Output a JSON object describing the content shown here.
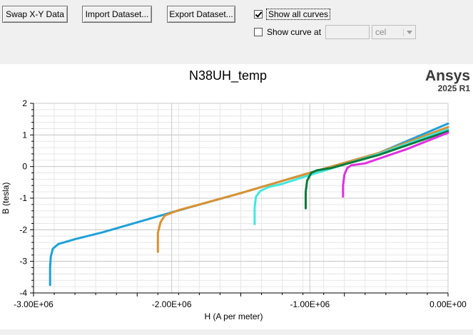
{
  "toolbar": {
    "swap_label": "Swap X-Y Data",
    "import_label": "Import Dataset...",
    "export_label": "Export Dataset...",
    "show_all_curves": {
      "label": "Show all curves",
      "checked": true
    },
    "show_curve_at": {
      "label": "Show curve at",
      "checked": false,
      "value": ""
    },
    "unit_select": {
      "value": "cel"
    }
  },
  "brand": {
    "name": "Ansys",
    "version": "2025 R1"
  },
  "chart_data": {
    "type": "line",
    "title": "N38UH_temp",
    "xlabel": "H (A  per  meter)",
    "ylabel": "B (tesla)",
    "xlim": [
      -3000000,
      0
    ],
    "ylim": [
      -4,
      2
    ],
    "x_tick_values": [
      -3000000,
      -2000000,
      -1000000,
      0
    ],
    "x_tick_labels": [
      "-3.00E+06",
      "-2.00E+06",
      "-1.00E+06",
      "0.00E+00"
    ],
    "y_tick_values": [
      -4,
      -3,
      -2,
      -1,
      0,
      1,
      2
    ],
    "y_tick_labels": [
      "-4",
      "-3",
      "-2",
      "-1",
      "0",
      "1",
      "2"
    ],
    "grid": true,
    "series": [
      {
        "color": "#1ea0d8",
        "x": [
          -2880000,
          -2880000,
          -2875000,
          -2860000,
          -2820000,
          -2700000,
          -2500000,
          -2000000,
          -1500000,
          -1000000,
          -500000,
          0
        ],
        "y": [
          -3.75,
          -3.2,
          -2.85,
          -2.6,
          -2.45,
          -2.3,
          -2.08,
          -1.45,
          -0.84,
          -0.2,
          0.43,
          1.36
        ]
      },
      {
        "color": "#dc9130",
        "x": [
          -2100000,
          -2100000,
          -2080000,
          -2050000,
          -1950000,
          -1800000,
          -1500000,
          -1000000,
          -500000,
          0
        ],
        "y": [
          -2.7,
          -2.1,
          -1.75,
          -1.55,
          -1.38,
          -1.2,
          -0.84,
          -0.2,
          0.43,
          1.25
        ]
      },
      {
        "color": "#40e8e0",
        "x": [
          -1400000,
          -1400000,
          -1390000,
          -1360000,
          -1300000,
          -1200000,
          -1000000,
          -500000,
          0
        ],
        "y": [
          -1.82,
          -1.3,
          -0.95,
          -0.78,
          -0.65,
          -0.55,
          -0.27,
          0.4,
          1.18
        ]
      },
      {
        "color": "#0a7a3c",
        "x": [
          -1030000,
          -1030000,
          -1020000,
          -990000,
          -950000,
          -850000,
          -500000,
          0
        ],
        "y": [
          -1.32,
          -0.8,
          -0.45,
          -0.2,
          -0.12,
          -0.05,
          0.37,
          1.12
        ]
      },
      {
        "color": "#e030e0",
        "x": [
          -760000,
          -760000,
          -750000,
          -730000,
          -700000,
          -600000,
          -300000,
          0
        ],
        "y": [
          -0.95,
          -0.6,
          -0.25,
          -0.05,
          0.04,
          0.1,
          0.55,
          1.07
        ]
      }
    ]
  }
}
